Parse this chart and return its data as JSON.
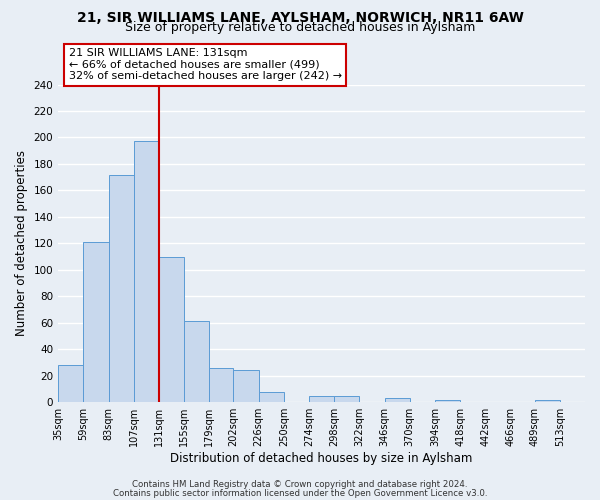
{
  "title": "21, SIR WILLIAMS LANE, AYLSHAM, NORWICH, NR11 6AW",
  "subtitle": "Size of property relative to detached houses in Aylsham",
  "xlabel": "Distribution of detached houses by size in Aylsham",
  "ylabel": "Number of detached properties",
  "bin_labels": [
    "35sqm",
    "59sqm",
    "83sqm",
    "107sqm",
    "131sqm",
    "155sqm",
    "179sqm",
    "202sqm",
    "226sqm",
    "250sqm",
    "274sqm",
    "298sqm",
    "322sqm",
    "346sqm",
    "370sqm",
    "394sqm",
    "418sqm",
    "442sqm",
    "466sqm",
    "489sqm",
    "513sqm"
  ],
  "bin_edges": [
    35,
    59,
    83,
    107,
    131,
    155,
    179,
    202,
    226,
    250,
    274,
    298,
    322,
    346,
    370,
    394,
    418,
    442,
    466,
    489,
    513
  ],
  "bar_heights": [
    28,
    121,
    172,
    197,
    110,
    61,
    26,
    24,
    8,
    0,
    5,
    5,
    0,
    3,
    0,
    2,
    0,
    0,
    0,
    2,
    0
  ],
  "bar_color": "#c8d8ed",
  "bar_edge_color": "#5b9bd5",
  "vline_x": 131,
  "vline_color": "#cc0000",
  "ylim": [
    0,
    240
  ],
  "yticks": [
    0,
    20,
    40,
    60,
    80,
    100,
    120,
    140,
    160,
    180,
    200,
    220,
    240
  ],
  "annotation_title": "21 SIR WILLIAMS LANE: 131sqm",
  "annotation_line1": "← 66% of detached houses are smaller (499)",
  "annotation_line2": "32% of semi-detached houses are larger (242) →",
  "annotation_box_color": "#ffffff",
  "annotation_box_edge": "#cc0000",
  "footer1": "Contains HM Land Registry data © Crown copyright and database right 2024.",
  "footer2": "Contains public sector information licensed under the Open Government Licence v3.0.",
  "bg_color": "#e8eef5",
  "plot_bg_color": "#e8eef5",
  "grid_color": "#ffffff",
  "title_fontsize": 10,
  "subtitle_fontsize": 9
}
